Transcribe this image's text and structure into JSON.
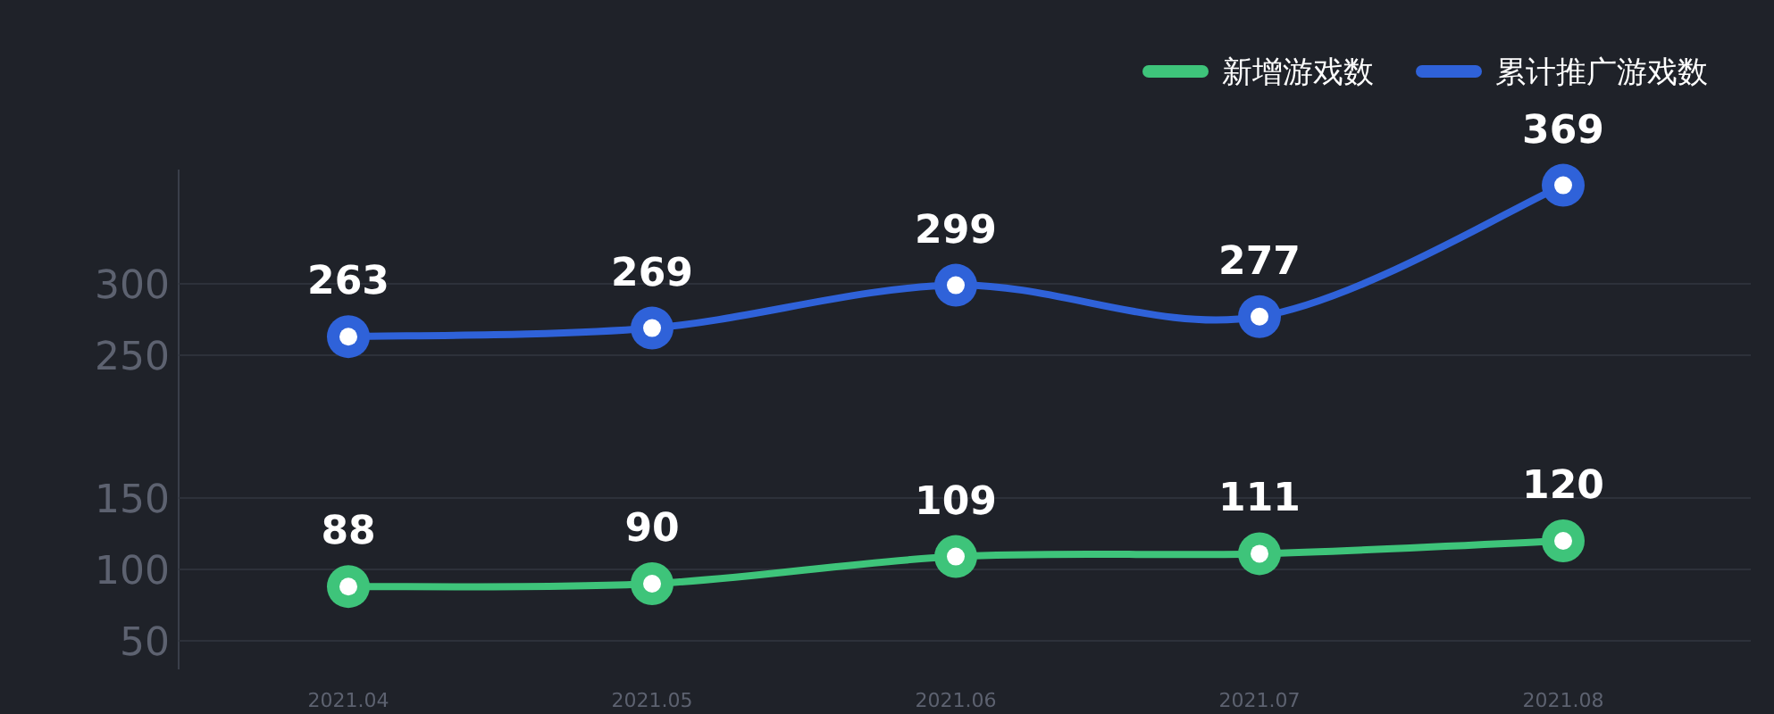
{
  "chart_data": {
    "type": "line",
    "categories": [
      "2021.04",
      "2021.05",
      "2021.06",
      "2021.07",
      "2021.08"
    ],
    "series": [
      {
        "name": "新增游戏数",
        "color": "#3ec47a",
        "values": [
          88,
          90,
          109,
          111,
          120
        ]
      },
      {
        "name": "累计推广游戏数",
        "color": "#2f62d9",
        "values": [
          263,
          269,
          299,
          277,
          369
        ]
      }
    ],
    "ylim": [
      30,
      380
    ],
    "yticks": [
      50,
      100,
      150,
      250,
      300
    ],
    "grid": "y",
    "legend": "top right",
    "data_labels": true,
    "marker": "circle"
  }
}
